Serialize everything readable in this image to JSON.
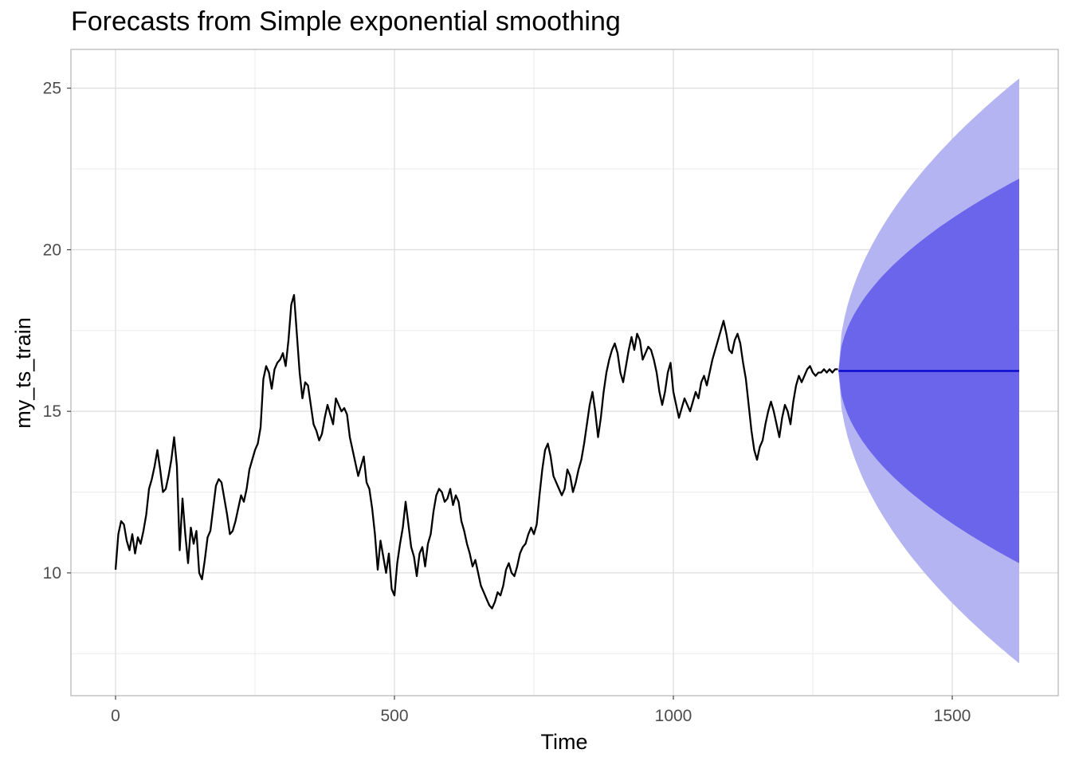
{
  "chart_data": {
    "type": "line",
    "title": "Forecasts from Simple exponential smoothing",
    "xlabel": "Time",
    "ylabel": "my_ts_train",
    "xlim": [
      -80,
      1690
    ],
    "ylim": [
      6.2,
      26.2
    ],
    "x_ticks": [
      0,
      500,
      1000,
      1500
    ],
    "x_tick_labels": [
      "0",
      "500",
      "1000",
      "1500"
    ],
    "y_ticks": [
      10,
      15,
      20,
      25
    ],
    "y_tick_labels": [
      "10",
      "15",
      "20",
      "25"
    ],
    "grid": true,
    "legend": "none",
    "series": [
      {
        "values_xy": [
          [
            0,
            10.1
          ],
          [
            5,
            11.2
          ],
          [
            10,
            11.6
          ],
          [
            15,
            11.5
          ],
          [
            20,
            11.0
          ],
          [
            25,
            10.7
          ],
          [
            30,
            11.2
          ],
          [
            35,
            10.6
          ],
          [
            40,
            11.1
          ],
          [
            45,
            10.9
          ],
          [
            50,
            11.3
          ],
          [
            55,
            11.8
          ],
          [
            60,
            12.6
          ],
          [
            65,
            12.9
          ],
          [
            70,
            13.3
          ],
          [
            75,
            13.8
          ],
          [
            80,
            13.2
          ],
          [
            85,
            12.5
          ],
          [
            90,
            12.6
          ],
          [
            95,
            13.0
          ],
          [
            100,
            13.5
          ],
          [
            105,
            14.2
          ],
          [
            110,
            13.3
          ],
          [
            115,
            10.7
          ],
          [
            120,
            12.3
          ],
          [
            125,
            11.2
          ],
          [
            130,
            10.3
          ],
          [
            135,
            11.4
          ],
          [
            140,
            10.9
          ],
          [
            145,
            11.3
          ],
          [
            150,
            10.0
          ],
          [
            155,
            9.8
          ],
          [
            160,
            10.4
          ],
          [
            165,
            11.1
          ],
          [
            170,
            11.3
          ],
          [
            175,
            12.0
          ],
          [
            180,
            12.7
          ],
          [
            185,
            12.9
          ],
          [
            190,
            12.8
          ],
          [
            195,
            12.3
          ],
          [
            200,
            11.8
          ],
          [
            205,
            11.2
          ],
          [
            210,
            11.3
          ],
          [
            215,
            11.6
          ],
          [
            220,
            12.0
          ],
          [
            225,
            12.4
          ],
          [
            230,
            12.2
          ],
          [
            235,
            12.6
          ],
          [
            240,
            13.2
          ],
          [
            245,
            13.5
          ],
          [
            250,
            13.8
          ],
          [
            255,
            14.0
          ],
          [
            260,
            14.5
          ],
          [
            265,
            16.0
          ],
          [
            270,
            16.4
          ],
          [
            275,
            16.2
          ],
          [
            280,
            15.7
          ],
          [
            285,
            16.3
          ],
          [
            290,
            16.5
          ],
          [
            295,
            16.6
          ],
          [
            300,
            16.8
          ],
          [
            305,
            16.4
          ],
          [
            310,
            17.2
          ],
          [
            315,
            18.3
          ],
          [
            320,
            18.6
          ],
          [
            325,
            17.4
          ],
          [
            330,
            16.2
          ],
          [
            335,
            15.4
          ],
          [
            340,
            15.9
          ],
          [
            345,
            15.8
          ],
          [
            350,
            15.2
          ],
          [
            355,
            14.6
          ],
          [
            360,
            14.4
          ],
          [
            365,
            14.1
          ],
          [
            370,
            14.3
          ],
          [
            375,
            14.8
          ],
          [
            380,
            15.2
          ],
          [
            385,
            14.9
          ],
          [
            390,
            14.6
          ],
          [
            395,
            15.4
          ],
          [
            400,
            15.2
          ],
          [
            405,
            15.0
          ],
          [
            410,
            15.1
          ],
          [
            415,
            14.9
          ],
          [
            420,
            14.2
          ],
          [
            425,
            13.8
          ],
          [
            430,
            13.4
          ],
          [
            435,
            13.0
          ],
          [
            440,
            13.3
          ],
          [
            445,
            13.6
          ],
          [
            450,
            12.8
          ],
          [
            455,
            12.6
          ],
          [
            460,
            12.0
          ],
          [
            465,
            11.2
          ],
          [
            470,
            10.1
          ],
          [
            475,
            11.0
          ],
          [
            480,
            10.5
          ],
          [
            485,
            10.0
          ],
          [
            490,
            10.6
          ],
          [
            495,
            9.5
          ],
          [
            500,
            9.3
          ],
          [
            505,
            10.3
          ],
          [
            510,
            10.9
          ],
          [
            515,
            11.4
          ],
          [
            520,
            12.2
          ],
          [
            525,
            11.5
          ],
          [
            530,
            10.8
          ],
          [
            535,
            10.5
          ],
          [
            540,
            9.9
          ],
          [
            545,
            10.6
          ],
          [
            550,
            10.8
          ],
          [
            555,
            10.2
          ],
          [
            560,
            10.9
          ],
          [
            565,
            11.2
          ],
          [
            570,
            11.9
          ],
          [
            575,
            12.4
          ],
          [
            580,
            12.6
          ],
          [
            585,
            12.5
          ],
          [
            590,
            12.2
          ],
          [
            595,
            12.3
          ],
          [
            600,
            12.6
          ],
          [
            605,
            12.1
          ],
          [
            610,
            12.4
          ],
          [
            615,
            12.2
          ],
          [
            620,
            11.6
          ],
          [
            625,
            11.3
          ],
          [
            630,
            10.9
          ],
          [
            635,
            10.6
          ],
          [
            640,
            10.2
          ],
          [
            645,
            10.4
          ],
          [
            650,
            10.0
          ],
          [
            655,
            9.6
          ],
          [
            660,
            9.4
          ],
          [
            665,
            9.2
          ],
          [
            670,
            9.0
          ],
          [
            675,
            8.9
          ],
          [
            680,
            9.1
          ],
          [
            685,
            9.4
          ],
          [
            690,
            9.3
          ],
          [
            695,
            9.6
          ],
          [
            700,
            10.1
          ],
          [
            705,
            10.3
          ],
          [
            710,
            10.0
          ],
          [
            715,
            9.9
          ],
          [
            720,
            10.2
          ],
          [
            725,
            10.6
          ],
          [
            730,
            10.8
          ],
          [
            735,
            10.9
          ],
          [
            740,
            11.2
          ],
          [
            745,
            11.4
          ],
          [
            750,
            11.2
          ],
          [
            755,
            11.5
          ],
          [
            760,
            12.4
          ],
          [
            765,
            13.2
          ],
          [
            770,
            13.8
          ],
          [
            775,
            14.0
          ],
          [
            780,
            13.6
          ],
          [
            785,
            13.0
          ],
          [
            790,
            12.8
          ],
          [
            795,
            12.6
          ],
          [
            800,
            12.4
          ],
          [
            805,
            12.6
          ],
          [
            810,
            13.2
          ],
          [
            815,
            13.0
          ],
          [
            820,
            12.5
          ],
          [
            825,
            12.8
          ],
          [
            830,
            13.2
          ],
          [
            835,
            13.5
          ],
          [
            840,
            14.0
          ],
          [
            845,
            14.6
          ],
          [
            850,
            15.2
          ],
          [
            855,
            15.6
          ],
          [
            860,
            15.0
          ],
          [
            865,
            14.2
          ],
          [
            870,
            14.8
          ],
          [
            875,
            15.6
          ],
          [
            880,
            16.2
          ],
          [
            885,
            16.6
          ],
          [
            890,
            16.9
          ],
          [
            895,
            17.1
          ],
          [
            900,
            16.8
          ],
          [
            905,
            16.2
          ],
          [
            910,
            15.9
          ],
          [
            915,
            16.4
          ],
          [
            920,
            16.9
          ],
          [
            925,
            17.3
          ],
          [
            930,
            16.9
          ],
          [
            935,
            17.4
          ],
          [
            940,
            17.2
          ],
          [
            945,
            16.6
          ],
          [
            950,
            16.8
          ],
          [
            955,
            17.0
          ],
          [
            960,
            16.9
          ],
          [
            965,
            16.6
          ],
          [
            970,
            16.2
          ],
          [
            975,
            15.6
          ],
          [
            980,
            15.2
          ],
          [
            985,
            15.6
          ],
          [
            990,
            16.2
          ],
          [
            995,
            16.5
          ],
          [
            1000,
            15.6
          ],
          [
            1005,
            15.2
          ],
          [
            1010,
            14.8
          ],
          [
            1015,
            15.1
          ],
          [
            1020,
            15.4
          ],
          [
            1025,
            15.2
          ],
          [
            1030,
            15.0
          ],
          [
            1035,
            15.3
          ],
          [
            1040,
            15.6
          ],
          [
            1045,
            15.4
          ],
          [
            1050,
            15.9
          ],
          [
            1055,
            16.1
          ],
          [
            1060,
            15.8
          ],
          [
            1065,
            16.2
          ],
          [
            1070,
            16.6
          ],
          [
            1075,
            16.9
          ],
          [
            1080,
            17.2
          ],
          [
            1085,
            17.5
          ],
          [
            1090,
            17.8
          ],
          [
            1095,
            17.4
          ],
          [
            1100,
            16.9
          ],
          [
            1105,
            16.8
          ],
          [
            1110,
            17.2
          ],
          [
            1115,
            17.4
          ],
          [
            1120,
            17.1
          ],
          [
            1125,
            16.5
          ],
          [
            1130,
            16.0
          ],
          [
            1135,
            15.2
          ],
          [
            1140,
            14.4
          ],
          [
            1145,
            13.8
          ],
          [
            1150,
            13.5
          ],
          [
            1155,
            13.9
          ],
          [
            1160,
            14.1
          ],
          [
            1165,
            14.6
          ],
          [
            1170,
            15.0
          ],
          [
            1175,
            15.3
          ],
          [
            1180,
            15.0
          ],
          [
            1185,
            14.6
          ],
          [
            1190,
            14.2
          ],
          [
            1195,
            14.8
          ],
          [
            1200,
            15.2
          ],
          [
            1205,
            15.0
          ],
          [
            1210,
            14.6
          ],
          [
            1215,
            15.3
          ],
          [
            1220,
            15.8
          ],
          [
            1225,
            16.1
          ],
          [
            1230,
            15.9
          ],
          [
            1235,
            16.1
          ],
          [
            1240,
            16.3
          ],
          [
            1245,
            16.4
          ],
          [
            1250,
            16.2
          ],
          [
            1255,
            16.1
          ],
          [
            1260,
            16.2
          ],
          [
            1265,
            16.2
          ],
          [
            1270,
            16.3
          ],
          [
            1275,
            16.2
          ],
          [
            1280,
            16.3
          ],
          [
            1285,
            16.2
          ],
          [
            1290,
            16.3
          ],
          [
            1295,
            16.3
          ]
        ],
        "color": "#000000"
      },
      {
        "role": "point-forecast",
        "x_range": [
          1296,
          1620
        ],
        "value": 16.25,
        "color": "#0000cc"
      }
    ],
    "intervals": [
      {
        "level": 95,
        "color": "#b4b4f2",
        "start_x": 1296,
        "end_x": 1620,
        "upper_end": 25.3,
        "lower_end": 7.2
      },
      {
        "level": 80,
        "color": "#6a65ea",
        "start_x": 1296,
        "end_x": 1620,
        "upper_end": 22.2,
        "lower_end": 10.3
      }
    ]
  }
}
